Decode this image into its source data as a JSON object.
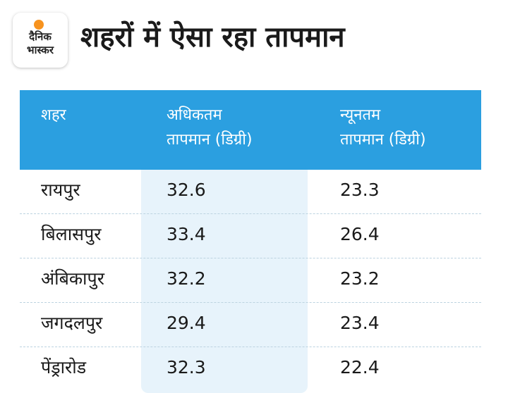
{
  "logo": {
    "line1": "दैनिक",
    "line2": "भास्कर"
  },
  "title": "शहरों में ऐसा रहा तापमान",
  "table": {
    "headers": [
      {
        "line1": "शहर",
        "line2": ""
      },
      {
        "line1": "अधिकतम",
        "line2": "तापमान (डिग्री)"
      },
      {
        "line1": "न्यूनतम",
        "line2": "तापमान (डिग्री)"
      }
    ],
    "rows": [
      {
        "city": "रायपुर",
        "max": "32.6",
        "min": "23.3"
      },
      {
        "city": "बिलासपुर",
        "max": "33.4",
        "min": "26.4"
      },
      {
        "city": "अंबिकापुर",
        "max": "32.2",
        "min": "23.2"
      },
      {
        "city": "जगदलपुर",
        "max": "29.4",
        "min": "23.4"
      },
      {
        "city": "पेंड्रारोड",
        "max": "32.3",
        "min": "22.4"
      }
    ]
  },
  "colors": {
    "header_bg": "#2b9fe0",
    "highlight_col": "#e7f3fb",
    "logo_sun": "#f7931e"
  }
}
